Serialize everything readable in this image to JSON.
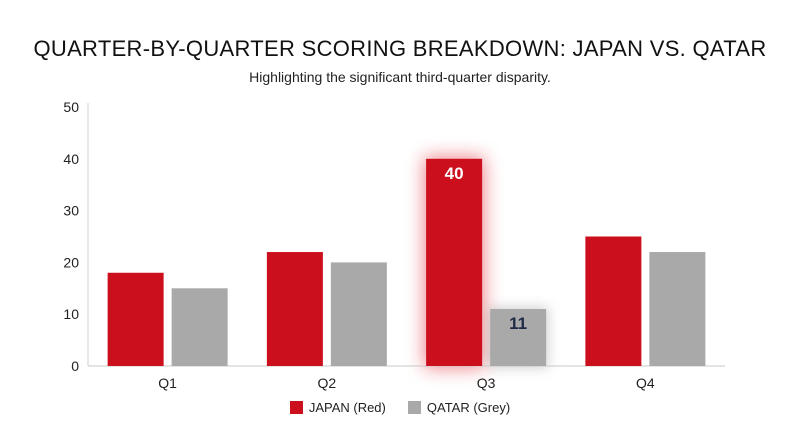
{
  "chart_data": {
    "type": "bar",
    "title": "QUARTER-BY-QUARTER SCORING BREAKDOWN: JAPAN VS. QATAR",
    "subtitle": "Highlighting the significant third-quarter disparity.",
    "categories": [
      "Q1",
      "Q2",
      "Q3",
      "Q4"
    ],
    "series": [
      {
        "name": "JAPAN (Red)",
        "color": "#cc0f1c",
        "values": [
          18,
          22,
          40,
          25
        ]
      },
      {
        "name": "QATAR (Grey)",
        "color": "#a9a9a9",
        "values": [
          15,
          20,
          11,
          22
        ]
      }
    ],
    "yticks": [
      0,
      10,
      20,
      30,
      40,
      50
    ],
    "ylim": [
      0,
      50
    ],
    "highlight": {
      "category": "Q3",
      "labels": [
        "40",
        "11"
      ]
    },
    "legend_position": "bottom-center",
    "grid": false
  }
}
